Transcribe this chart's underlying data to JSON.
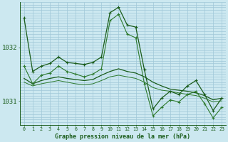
{
  "title": "Graphe pression niveau de la mer (hPa)",
  "background_color": "#cce8f0",
  "grid_color": "#a0c8d8",
  "line_color_dark": "#1a5c1a",
  "line_color_med": "#2d7a2d",
  "xlim": [
    -0.5,
    23.5
  ],
  "ylim_min": 1030.55,
  "ylim_max": 1032.85,
  "x_ticks": [
    0,
    1,
    2,
    3,
    4,
    5,
    6,
    7,
    8,
    9,
    10,
    11,
    12,
    13,
    14,
    15,
    16,
    17,
    18,
    19,
    20,
    21,
    22,
    23
  ],
  "y_ticks": [
    1031,
    1032
  ],
  "series1_x": [
    0,
    1,
    2,
    3,
    4,
    5,
    6,
    7,
    8,
    9,
    10,
    11,
    12,
    13,
    14,
    15,
    16,
    17,
    18,
    19,
    20,
    21,
    22,
    23
  ],
  "series1_y": [
    1032.55,
    1031.55,
    1031.65,
    1031.7,
    1031.82,
    1031.72,
    1031.7,
    1031.68,
    1031.72,
    1031.82,
    1032.65,
    1032.75,
    1032.42,
    1032.38,
    1031.58,
    1030.85,
    1031.05,
    1031.18,
    1031.12,
    1031.28,
    1031.38,
    1031.12,
    1030.82,
    1031.05
  ],
  "series2_x": [
    0,
    1,
    2,
    3,
    4,
    5,
    6,
    7,
    8,
    9,
    10,
    11,
    12,
    13,
    14,
    15,
    16,
    17,
    18,
    19,
    20,
    21,
    22,
    23
  ],
  "series2_y": [
    1031.65,
    1031.32,
    1031.48,
    1031.52,
    1031.65,
    1031.55,
    1031.5,
    1031.45,
    1031.5,
    1031.6,
    1032.5,
    1032.62,
    1032.25,
    1032.18,
    1031.32,
    1030.72,
    1030.88,
    1031.02,
    1030.98,
    1031.12,
    1031.18,
    1030.95,
    1030.68,
    1030.88
  ],
  "series3_x": [
    0,
    1,
    2,
    3,
    4,
    5,
    6,
    7,
    8,
    9,
    10,
    11,
    12,
    13,
    14,
    15,
    16,
    17,
    18,
    19,
    20,
    21,
    22,
    23
  ],
  "series3_y": [
    1031.42,
    1031.32,
    1031.38,
    1031.42,
    1031.45,
    1031.42,
    1031.4,
    1031.38,
    1031.4,
    1031.48,
    1031.55,
    1031.6,
    1031.55,
    1031.52,
    1031.45,
    1031.35,
    1031.28,
    1031.22,
    1031.2,
    1031.18,
    1031.15,
    1031.1,
    1031.02,
    1031.05
  ],
  "series4_x": [
    0,
    1,
    2,
    3,
    4,
    5,
    6,
    7,
    8,
    9,
    10,
    11,
    12,
    13,
    14,
    15,
    16,
    17,
    18,
    19,
    20,
    21,
    22,
    23
  ],
  "series4_y": [
    1031.35,
    1031.28,
    1031.32,
    1031.35,
    1031.38,
    1031.35,
    1031.32,
    1031.3,
    1031.32,
    1031.38,
    1031.45,
    1031.48,
    1031.45,
    1031.42,
    1031.35,
    1031.25,
    1031.2,
    1031.18,
    1031.15,
    1031.12,
    1031.1,
    1031.05,
    1030.98,
    1031.0
  ]
}
